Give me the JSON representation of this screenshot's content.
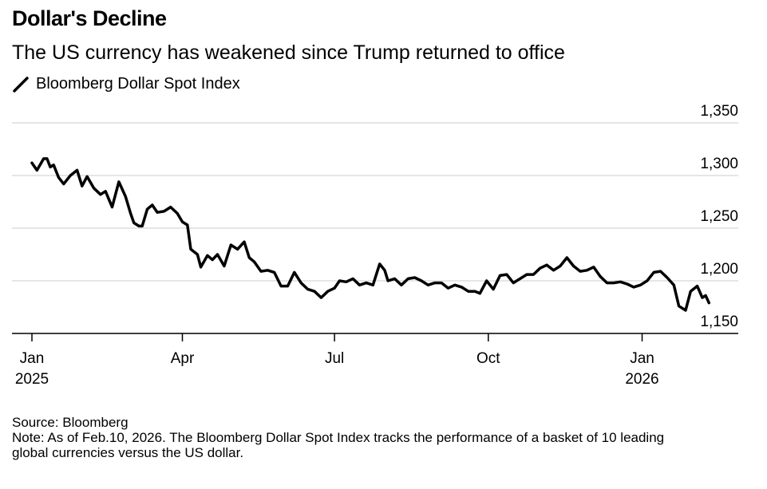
{
  "title": "Dollar's Decline",
  "subtitle": "The US currency has weakened since Trump returned to office",
  "source": "Source: Bloomberg",
  "note_line1": "Note: As of Feb.10, 2026. The Bloomberg Dollar Spot Index tracks the performance of a basket of 10 leading",
  "note_line2": "global currencies versus the US dollar.",
  "chart_data": {
    "type": "line",
    "title": "Dollar's Decline",
    "subtitle": "The US currency has weakened since Trump returned to office",
    "ylim": [
      1150,
      1350
    ],
    "yticks": [
      1150,
      1200,
      1250,
      1300,
      1350
    ],
    "ytick_labels": [
      "1,150",
      "1,200",
      "1,250",
      "1,300",
      "1,350"
    ],
    "xlim": [
      "2025-01-01",
      "2026-02-28"
    ],
    "xticks": [
      {
        "date": "2025-01-01",
        "label": "Jan",
        "sublabel": "2025"
      },
      {
        "date": "2025-04-01",
        "label": "Apr",
        "sublabel": ""
      },
      {
        "date": "2025-07-01",
        "label": "Jul",
        "sublabel": ""
      },
      {
        "date": "2025-10-01",
        "label": "Oct",
        "sublabel": ""
      },
      {
        "date": "2026-01-01",
        "label": "Jan",
        "sublabel": "2026"
      }
    ],
    "grid": true,
    "legend_position": "top-left",
    "color": "#000000",
    "series": [
      {
        "name": "Bloomberg Dollar Spot Index",
        "x": [
          "2025-01-01",
          "2025-01-04",
          "2025-01-08",
          "2025-01-10",
          "2025-01-12",
          "2025-01-14",
          "2025-01-17",
          "2025-01-20",
          "2025-01-24",
          "2025-01-28",
          "2025-01-31",
          "2025-02-03",
          "2025-02-07",
          "2025-02-11",
          "2025-02-14",
          "2025-02-18",
          "2025-02-22",
          "2025-02-26",
          "2025-03-01",
          "2025-03-03",
          "2025-03-06",
          "2025-03-08",
          "2025-03-11",
          "2025-03-14",
          "2025-03-17",
          "2025-03-21",
          "2025-03-25",
          "2025-03-29",
          "2025-04-01",
          "2025-04-04",
          "2025-04-06",
          "2025-04-10",
          "2025-04-12",
          "2025-04-16",
          "2025-04-19",
          "2025-04-22",
          "2025-04-26",
          "2025-04-30",
          "2025-05-04",
          "2025-05-08",
          "2025-05-11",
          "2025-05-14",
          "2025-05-18",
          "2025-05-22",
          "2025-05-26",
          "2025-05-30",
          "2025-06-03",
          "2025-06-07",
          "2025-06-11",
          "2025-06-15",
          "2025-06-19",
          "2025-06-23",
          "2025-06-27",
          "2025-07-01",
          "2025-07-04",
          "2025-07-08",
          "2025-07-12",
          "2025-07-16",
          "2025-07-20",
          "2025-07-24",
          "2025-07-28",
          "2025-07-31",
          "2025-08-02",
          "2025-08-06",
          "2025-08-10",
          "2025-08-14",
          "2025-08-18",
          "2025-08-22",
          "2025-08-26",
          "2025-08-30",
          "2025-09-03",
          "2025-09-07",
          "2025-09-11",
          "2025-09-15",
          "2025-09-19",
          "2025-09-23",
          "2025-09-26",
          "2025-09-30",
          "2025-10-04",
          "2025-10-08",
          "2025-10-12",
          "2025-10-16",
          "2025-10-20",
          "2025-10-24",
          "2025-10-28",
          "2025-11-01",
          "2025-11-05",
          "2025-11-09",
          "2025-11-13",
          "2025-11-17",
          "2025-11-21",
          "2025-11-25",
          "2025-11-29",
          "2025-12-03",
          "2025-12-07",
          "2025-12-11",
          "2025-12-15",
          "2025-12-19",
          "2025-12-23",
          "2025-12-27",
          "2025-12-31",
          "2026-01-04",
          "2026-01-08",
          "2026-01-12",
          "2026-01-16",
          "2026-01-20",
          "2026-01-23",
          "2026-01-27",
          "2026-01-30",
          "2026-02-03",
          "2026-02-06",
          "2026-02-08",
          "2026-02-10"
        ],
        "values": [
          1312,
          1305,
          1316,
          1316,
          1308,
          1310,
          1298,
          1292,
          1300,
          1305,
          1290,
          1299,
          1288,
          1282,
          1285,
          1270,
          1294,
          1280,
          1264,
          1255,
          1252,
          1252,
          1268,
          1272,
          1265,
          1266,
          1270,
          1264,
          1256,
          1253,
          1230,
          1225,
          1213,
          1224,
          1220,
          1225,
          1214,
          1234,
          1230,
          1237,
          1222,
          1218,
          1209,
          1210,
          1208,
          1195,
          1195,
          1208,
          1198,
          1192,
          1190,
          1184,
          1190,
          1193,
          1200,
          1199,
          1202,
          1196,
          1198,
          1196,
          1216,
          1210,
          1200,
          1202,
          1196,
          1202,
          1203,
          1200,
          1196,
          1198,
          1198,
          1193,
          1196,
          1194,
          1190,
          1190,
          1188,
          1200,
          1192,
          1205,
          1206,
          1198,
          1202,
          1206,
          1206,
          1212,
          1215,
          1210,
          1214,
          1222,
          1214,
          1209,
          1210,
          1213,
          1204,
          1198,
          1198,
          1199,
          1197,
          1194,
          1196,
          1200,
          1208,
          1209,
          1203,
          1196,
          1176,
          1172,
          1190,
          1195,
          1184,
          1186,
          1179
        ]
      }
    ]
  }
}
